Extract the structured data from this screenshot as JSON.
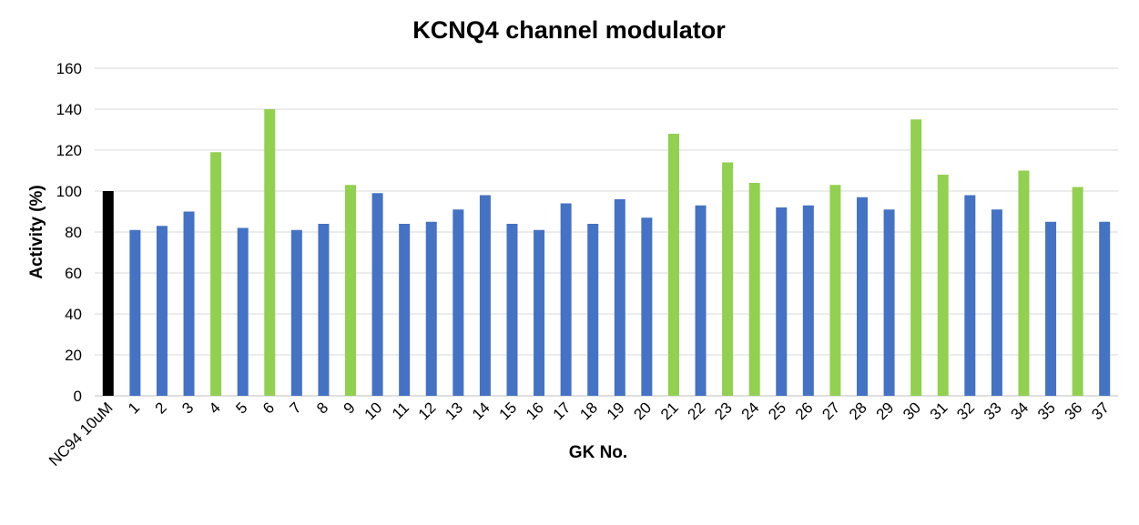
{
  "chart_data": {
    "type": "bar",
    "title": "KCNQ4 channel modulator",
    "xlabel": "GK No.",
    "ylabel": "Activity (%)",
    "ylim": [
      0,
      160
    ],
    "yticks": [
      0,
      20,
      40,
      60,
      80,
      100,
      120,
      140,
      160
    ],
    "grid": true,
    "legend": "none",
    "categories": [
      "NC94 10uM",
      "1",
      "2",
      "3",
      "4",
      "5",
      "6",
      "7",
      "8",
      "9",
      "10",
      "11",
      "12",
      "13",
      "14",
      "15",
      "16",
      "17",
      "18",
      "19",
      "20",
      "21",
      "22",
      "23",
      "24",
      "25",
      "26",
      "27",
      "28",
      "29",
      "30",
      "31",
      "32",
      "33",
      "34",
      "35",
      "36",
      "37"
    ],
    "values": [
      100,
      81,
      83,
      90,
      119,
      82,
      140,
      81,
      84,
      103,
      99,
      84,
      85,
      91,
      98,
      84,
      81,
      94,
      84,
      96,
      87,
      128,
      93,
      114,
      104,
      92,
      93,
      103,
      97,
      91,
      135,
      108,
      98,
      91,
      110,
      85,
      102,
      85
    ],
    "bar_colors": [
      "#000000",
      "#4472c4",
      "#4472c4",
      "#4472c4",
      "#92d050",
      "#4472c4",
      "#92d050",
      "#4472c4",
      "#4472c4",
      "#92d050",
      "#4472c4",
      "#4472c4",
      "#4472c4",
      "#4472c4",
      "#4472c4",
      "#4472c4",
      "#4472c4",
      "#4472c4",
      "#4472c4",
      "#4472c4",
      "#4472c4",
      "#92d050",
      "#4472c4",
      "#92d050",
      "#92d050",
      "#4472c4",
      "#4472c4",
      "#92d050",
      "#4472c4",
      "#4472c4",
      "#92d050",
      "#92d050",
      "#4472c4",
      "#4472c4",
      "#92d050",
      "#4472c4",
      "#92d050",
      "#4472c4"
    ]
  }
}
